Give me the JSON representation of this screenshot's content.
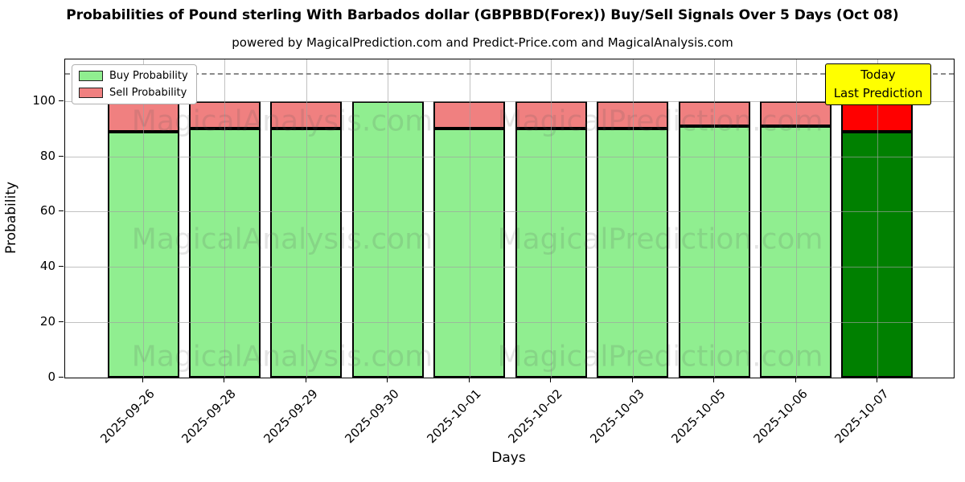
{
  "header": {
    "title": "Probabilities of Pound sterling With Barbados dollar (GBPBBD(Forex)) Buy/Sell Signals Over 5 Days (Oct 08)",
    "subtitle": "powered by MagicalPrediction.com and Predict-Price.com and MagicalAnalysis.com"
  },
  "annotation": {
    "line1": "Today",
    "line2": "Last Prediction",
    "bg_color": "#FFFF00"
  },
  "watermarks": {
    "left_text": "MagicalAnalysis.com",
    "right_text": "MagicalPrediction.com"
  },
  "chart_data": {
    "type": "bar",
    "stacked": true,
    "title": "Probabilities of Pound sterling With Barbados dollar (GBPBBD(Forex)) Buy/Sell Signals Over 5 Days (Oct 08)",
    "xlabel": "Days",
    "ylabel": "Probability",
    "categories": [
      "2025-09-26",
      "2025-09-28",
      "2025-09-29",
      "2025-09-30",
      "2025-10-01",
      "2025-10-02",
      "2025-10-03",
      "2025-10-05",
      "2025-10-06",
      "2025-10-07"
    ],
    "series": [
      {
        "name": "Buy Probability",
        "values": [
          89,
          90,
          90,
          100,
          90,
          90,
          90,
          91,
          91,
          89
        ],
        "color": "#90EE90",
        "today_color": "#008000"
      },
      {
        "name": "Sell Probability",
        "values": [
          11,
          10,
          10,
          0,
          10,
          10,
          10,
          9,
          9,
          11
        ],
        "color": "#F08080",
        "today_color": "#FF0000"
      }
    ],
    "today_index": 9,
    "bar_edge_color": "#000000",
    "ylim": [
      0,
      115
    ],
    "yticks": [
      0,
      20,
      40,
      60,
      80,
      100
    ],
    "dashed_line_y": 110,
    "grid": true,
    "legend_position": "upper left"
  }
}
